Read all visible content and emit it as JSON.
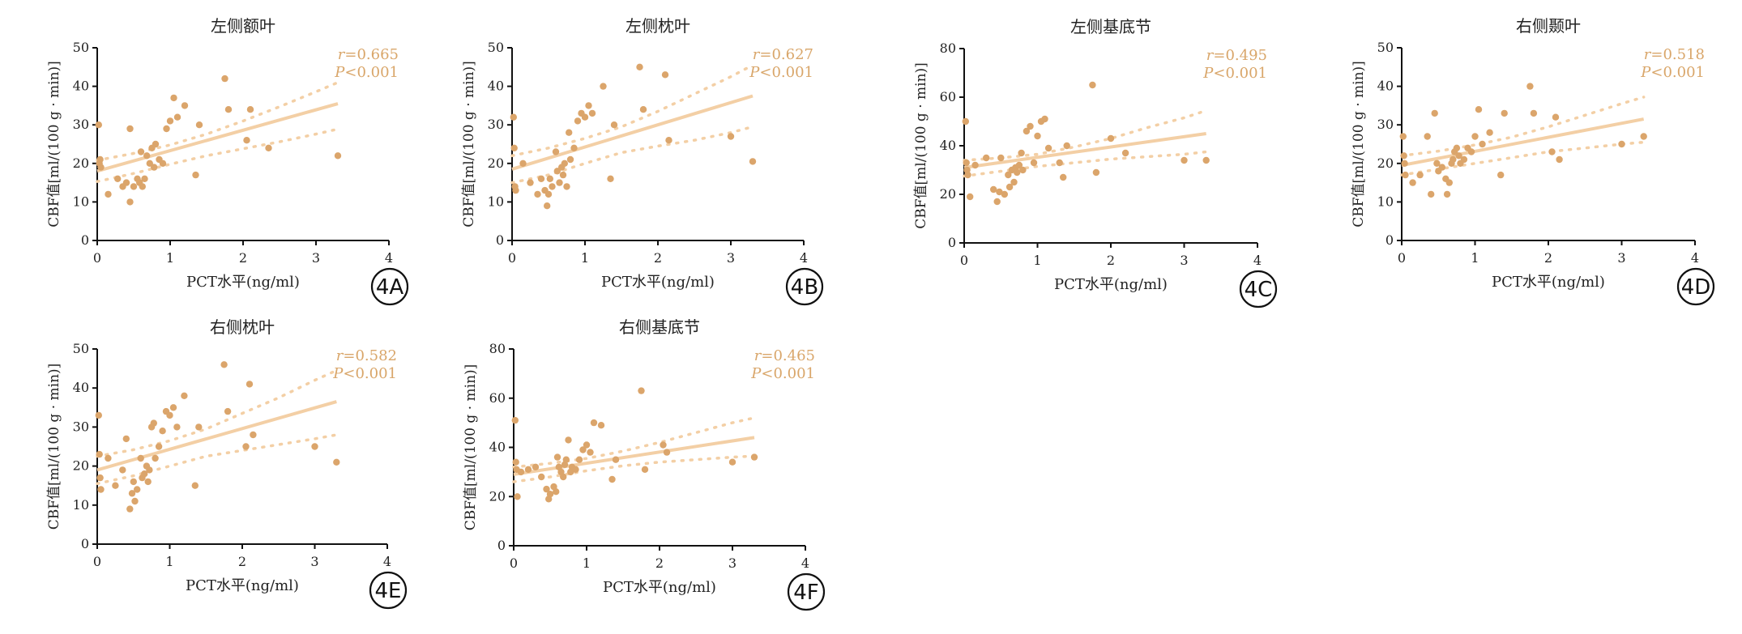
{
  "chart_data": [
    {
      "type": "scatter",
      "panel": "4A",
      "title": "左侧额叶",
      "xlabel": "PCT水平(ng/ml)",
      "ylabel": "CBF值[ml/(100 g · min)]",
      "xlim": [
        0,
        4
      ],
      "ylim": [
        0,
        50
      ],
      "xticks": [
        0,
        1,
        2,
        3,
        4
      ],
      "yticks": [
        0,
        10,
        20,
        30,
        40,
        50
      ],
      "r_label": "r",
      "r_value": "=0.665",
      "p_label": "P",
      "p_value": "<0.001",
      "fit": {
        "x": [
          0,
          3.3
        ],
        "y": [
          18,
          35.5
        ]
      },
      "ci_upper": {
        "x": [
          0,
          0.5,
          1,
          1.5,
          2,
          2.5,
          3,
          3.3
        ],
        "y": [
          20.8,
          22.6,
          24.8,
          27.6,
          31,
          34.7,
          38.6,
          41
        ]
      },
      "ci_lower": {
        "x": [
          0,
          0.5,
          1,
          1.5,
          2,
          2.5,
          3,
          3.3
        ],
        "y": [
          15.3,
          17.4,
          19.8,
          22,
          23.8,
          25.6,
          27.6,
          28.9
        ]
      },
      "points": [
        [
          0.02,
          30
        ],
        [
          0.03,
          20
        ],
        [
          0.04,
          21
        ],
        [
          0.05,
          19
        ],
        [
          0.15,
          12
        ],
        [
          0.28,
          16
        ],
        [
          0.35,
          14
        ],
        [
          0.4,
          15
        ],
        [
          0.45,
          29
        ],
        [
          0.45,
          10
        ],
        [
          0.5,
          14
        ],
        [
          0.55,
          16
        ],
        [
          0.58,
          15
        ],
        [
          0.6,
          23
        ],
        [
          0.62,
          14
        ],
        [
          0.65,
          16
        ],
        [
          0.68,
          22
        ],
        [
          0.72,
          20
        ],
        [
          0.75,
          24
        ],
        [
          0.78,
          19
        ],
        [
          0.8,
          25
        ],
        [
          0.85,
          21
        ],
        [
          0.9,
          20
        ],
        [
          0.95,
          29
        ],
        [
          1.0,
          31
        ],
        [
          1.05,
          37
        ],
        [
          1.1,
          32
        ],
        [
          1.2,
          35
        ],
        [
          1.35,
          17
        ],
        [
          1.4,
          30
        ],
        [
          1.75,
          42
        ],
        [
          1.8,
          34
        ],
        [
          2.05,
          26
        ],
        [
          2.1,
          34
        ],
        [
          2.35,
          24
        ],
        [
          3.3,
          22
        ]
      ]
    },
    {
      "type": "scatter",
      "panel": "4B",
      "title": "左侧枕叶",
      "xlabel": "PCT水平(ng/ml)",
      "ylabel": "CBF值[ml/(100 g · min)]",
      "xlim": [
        0,
        4
      ],
      "ylim": [
        0,
        50
      ],
      "xticks": [
        0,
        1,
        2,
        3,
        4
      ],
      "yticks": [
        0,
        10,
        20,
        30,
        40,
        50
      ],
      "r_label": "r",
      "r_value": "=0.627",
      "p_label": "P",
      "p_value": "<0.001",
      "fit": {
        "x": [
          0,
          3.3
        ],
        "y": [
          18.5,
          37.5
        ]
      },
      "ci_upper": {
        "x": [
          0,
          0.5,
          1,
          1.5,
          2,
          2.5,
          3,
          3.3
        ],
        "y": [
          22,
          24,
          26.5,
          29.5,
          33.5,
          38,
          42.5,
          45.5
        ]
      },
      "ci_lower": {
        "x": [
          0,
          0.5,
          1,
          1.5,
          2,
          2.5,
          3,
          3.3
        ],
        "y": [
          15,
          17,
          20,
          22.8,
          24.5,
          26,
          28,
          29.5
        ]
      },
      "points": [
        [
          0.02,
          32
        ],
        [
          0.03,
          24
        ],
        [
          0.04,
          14
        ],
        [
          0.05,
          13
        ],
        [
          0.15,
          20
        ],
        [
          0.25,
          15
        ],
        [
          0.35,
          12
        ],
        [
          0.4,
          16
        ],
        [
          0.45,
          13
        ],
        [
          0.48,
          9
        ],
        [
          0.5,
          12
        ],
        [
          0.52,
          16
        ],
        [
          0.55,
          14
        ],
        [
          0.6,
          23
        ],
        [
          0.62,
          18
        ],
        [
          0.65,
          15
        ],
        [
          0.68,
          19
        ],
        [
          0.7,
          17
        ],
        [
          0.72,
          20
        ],
        [
          0.75,
          14
        ],
        [
          0.78,
          28
        ],
        [
          0.8,
          21
        ],
        [
          0.85,
          24
        ],
        [
          0.9,
          31
        ],
        [
          0.95,
          33
        ],
        [
          1.0,
          32
        ],
        [
          1.05,
          35
        ],
        [
          1.1,
          33
        ],
        [
          1.25,
          40
        ],
        [
          1.35,
          16
        ],
        [
          1.4,
          30
        ],
        [
          1.75,
          45
        ],
        [
          1.8,
          34
        ],
        [
          2.1,
          43
        ],
        [
          2.15,
          26
        ],
        [
          3.0,
          27
        ],
        [
          3.3,
          20.5
        ]
      ]
    },
    {
      "type": "scatter",
      "panel": "4C",
      "title": "左侧基底节",
      "xlabel": "PCT水平(ng/ml)",
      "ylabel": "CBF值[ml/(100 g · min)]",
      "xlim": [
        0,
        4
      ],
      "ylim": [
        0,
        80
      ],
      "xticks": [
        0,
        1,
        2,
        3,
        4
      ],
      "yticks": [
        0,
        20,
        40,
        60,
        80
      ],
      "r_label": "r",
      "r_value": "=0.495",
      "p_label": "P",
      "p_value": "<0.001",
      "fit": {
        "x": [
          0,
          3.3
        ],
        "y": [
          31,
          45
        ]
      },
      "ci_upper": {
        "x": [
          0,
          0.5,
          1,
          1.5,
          2,
          2.5,
          3,
          3.3
        ],
        "y": [
          34,
          35,
          36.5,
          39.5,
          43,
          47.5,
          51.5,
          54.5
        ]
      },
      "ci_lower": {
        "x": [
          0,
          0.5,
          1,
          1.5,
          2,
          2.5,
          3,
          3.3
        ],
        "y": [
          27.5,
          29.5,
          31.5,
          33,
          34.5,
          35.5,
          36.5,
          37.5
        ]
      },
      "points": [
        [
          0.02,
          50
        ],
        [
          0.03,
          33
        ],
        [
          0.04,
          30
        ],
        [
          0.05,
          28
        ],
        [
          0.08,
          19
        ],
        [
          0.15,
          32
        ],
        [
          0.3,
          35
        ],
        [
          0.4,
          22
        ],
        [
          0.45,
          17
        ],
        [
          0.48,
          21
        ],
        [
          0.5,
          35
        ],
        [
          0.55,
          20
        ],
        [
          0.6,
          28
        ],
        [
          0.62,
          23
        ],
        [
          0.65,
          30
        ],
        [
          0.68,
          25
        ],
        [
          0.7,
          31
        ],
        [
          0.72,
          29
        ],
        [
          0.75,
          32
        ],
        [
          0.78,
          37
        ],
        [
          0.8,
          30
        ],
        [
          0.85,
          46
        ],
        [
          0.9,
          48
        ],
        [
          0.95,
          33
        ],
        [
          1.0,
          44
        ],
        [
          1.05,
          50
        ],
        [
          1.1,
          51
        ],
        [
          1.15,
          39
        ],
        [
          1.3,
          33
        ],
        [
          1.35,
          27
        ],
        [
          1.4,
          40
        ],
        [
          1.75,
          65
        ],
        [
          1.8,
          29
        ],
        [
          2.0,
          43
        ],
        [
          2.2,
          37
        ],
        [
          3.0,
          34
        ],
        [
          3.3,
          34
        ]
      ]
    },
    {
      "type": "scatter",
      "panel": "4D",
      "title": "右侧颞叶",
      "xlabel": "PCT水平(ng/ml)",
      "ylabel": "CBF值[ml/(100 g · min)]",
      "xlim": [
        0,
        4
      ],
      "ylim": [
        0,
        50
      ],
      "xticks": [
        0,
        1,
        2,
        3,
        4
      ],
      "yticks": [
        0,
        10,
        20,
        30,
        40,
        50
      ],
      "r_label": "r",
      "r_value": "=0.518",
      "p_label": "P",
      "p_value": "<0.001",
      "fit": {
        "x": [
          0,
          3.3
        ],
        "y": [
          19.5,
          31.5
        ]
      },
      "ci_upper": {
        "x": [
          0,
          0.5,
          1,
          1.5,
          2,
          2.5,
          3,
          3.3
        ],
        "y": [
          22,
          23.2,
          24.8,
          26.8,
          29.5,
          32.5,
          35.5,
          37.2
        ]
      },
      "ci_lower": {
        "x": [
          0,
          0.5,
          1,
          1.5,
          2,
          2.5,
          3,
          3.3
        ],
        "y": [
          17,
          18.5,
          20,
          21.5,
          23,
          24,
          25,
          25.5
        ]
      },
      "points": [
        [
          0.02,
          27
        ],
        [
          0.03,
          22
        ],
        [
          0.04,
          20
        ],
        [
          0.05,
          17
        ],
        [
          0.15,
          15
        ],
        [
          0.25,
          17
        ],
        [
          0.35,
          27
        ],
        [
          0.4,
          12
        ],
        [
          0.45,
          33
        ],
        [
          0.48,
          20
        ],
        [
          0.5,
          18
        ],
        [
          0.55,
          19
        ],
        [
          0.6,
          16
        ],
        [
          0.62,
          12
        ],
        [
          0.65,
          15
        ],
        [
          0.68,
          20
        ],
        [
          0.7,
          21
        ],
        [
          0.72,
          23
        ],
        [
          0.75,
          24
        ],
        [
          0.78,
          22
        ],
        [
          0.8,
          20
        ],
        [
          0.85,
          21
        ],
        [
          0.9,
          24
        ],
        [
          0.95,
          23
        ],
        [
          1.0,
          27
        ],
        [
          1.05,
          34
        ],
        [
          1.1,
          25
        ],
        [
          1.2,
          28
        ],
        [
          1.35,
          17
        ],
        [
          1.4,
          33
        ],
        [
          1.75,
          40
        ],
        [
          1.8,
          33
        ],
        [
          2.05,
          23
        ],
        [
          2.1,
          32
        ],
        [
          2.15,
          21
        ],
        [
          3.0,
          25
        ],
        [
          3.3,
          27
        ]
      ]
    },
    {
      "type": "scatter",
      "panel": "4E",
      "title": "右侧枕叶",
      "xlabel": "PCT水平(ng/ml)",
      "ylabel": "CBF值[ml/(100 g · min)]",
      "xlim": [
        0,
        4
      ],
      "ylim": [
        0,
        50
      ],
      "xticks": [
        0,
        1,
        2,
        3,
        4
      ],
      "yticks": [
        0,
        10,
        20,
        30,
        40,
        50
      ],
      "r_label": "r",
      "r_value": "=0.582",
      "p_label": "P",
      "p_value": "<0.001",
      "fit": {
        "x": [
          0,
          3.3
        ],
        "y": [
          19,
          36.5
        ]
      },
      "ci_upper": {
        "x": [
          0,
          0.5,
          1,
          1.5,
          2,
          2.5,
          3,
          3.3
        ],
        "y": [
          22.5,
          24.2,
          26.5,
          29.5,
          33.5,
          37.5,
          42,
          44.5
        ]
      },
      "ci_lower": {
        "x": [
          0,
          0.5,
          1,
          1.5,
          2,
          2.5,
          3,
          3.3
        ],
        "y": [
          15.5,
          17.5,
          20,
          22.5,
          24,
          25.5,
          27,
          28
        ]
      },
      "points": [
        [
          0.02,
          33
        ],
        [
          0.03,
          23
        ],
        [
          0.04,
          17
        ],
        [
          0.05,
          14
        ],
        [
          0.15,
          22
        ],
        [
          0.25,
          15
        ],
        [
          0.35,
          19
        ],
        [
          0.4,
          27
        ],
        [
          0.45,
          9
        ],
        [
          0.48,
          13
        ],
        [
          0.5,
          16
        ],
        [
          0.52,
          11
        ],
        [
          0.55,
          14
        ],
        [
          0.6,
          22
        ],
        [
          0.62,
          17
        ],
        [
          0.65,
          18
        ],
        [
          0.68,
          20
        ],
        [
          0.7,
          16
        ],
        [
          0.72,
          19
        ],
        [
          0.75,
          30
        ],
        [
          0.78,
          31
        ],
        [
          0.8,
          22
        ],
        [
          0.85,
          25
        ],
        [
          0.9,
          29
        ],
        [
          0.95,
          34
        ],
        [
          1.0,
          33
        ],
        [
          1.05,
          35
        ],
        [
          1.1,
          30
        ],
        [
          1.2,
          38
        ],
        [
          1.35,
          15
        ],
        [
          1.4,
          30
        ],
        [
          1.75,
          46
        ],
        [
          1.8,
          34
        ],
        [
          2.05,
          25
        ],
        [
          2.1,
          41
        ],
        [
          2.15,
          28
        ],
        [
          3.0,
          25
        ],
        [
          3.3,
          21
        ]
      ]
    },
    {
      "type": "scatter",
      "panel": "4F",
      "title": "右侧基底节",
      "xlabel": "PCT水平(ng/ml)",
      "ylabel": "CBF值[ml/(100 g · min)]",
      "xlim": [
        0,
        4
      ],
      "ylim": [
        0,
        80
      ],
      "xticks": [
        0,
        1,
        2,
        3,
        4
      ],
      "yticks": [
        0,
        20,
        40,
        60,
        80
      ],
      "r_label": "r",
      "r_value": "=0.465",
      "p_label": "P",
      "p_value": "<0.001",
      "fit": {
        "x": [
          0,
          3.3
        ],
        "y": [
          29,
          44
        ]
      },
      "ci_upper": {
        "x": [
          0,
          0.5,
          1,
          1.5,
          2,
          2.5,
          3,
          3.3
        ],
        "y": [
          32,
          33.5,
          35.5,
          38.5,
          42,
          46,
          50,
          52
        ]
      },
      "ci_lower": {
        "x": [
          0,
          0.5,
          1,
          1.5,
          2,
          2.5,
          3,
          3.3
        ],
        "y": [
          26,
          28,
          30.5,
          32.5,
          34,
          35,
          36,
          36.5
        ]
      },
      "points": [
        [
          0.02,
          51
        ],
        [
          0.03,
          34
        ],
        [
          0.04,
          31
        ],
        [
          0.05,
          20
        ],
        [
          0.1,
          30
        ],
        [
          0.2,
          31
        ],
        [
          0.3,
          32
        ],
        [
          0.38,
          28
        ],
        [
          0.45,
          23
        ],
        [
          0.48,
          19
        ],
        [
          0.5,
          21
        ],
        [
          0.55,
          24
        ],
        [
          0.58,
          22
        ],
        [
          0.6,
          36
        ],
        [
          0.62,
          32
        ],
        [
          0.65,
          30
        ],
        [
          0.68,
          28
        ],
        [
          0.7,
          33
        ],
        [
          0.72,
          35
        ],
        [
          0.75,
          43
        ],
        [
          0.78,
          30
        ],
        [
          0.8,
          32
        ],
        [
          0.85,
          31
        ],
        [
          0.9,
          35
        ],
        [
          0.95,
          39
        ],
        [
          1.0,
          41
        ],
        [
          1.05,
          38
        ],
        [
          1.1,
          50
        ],
        [
          1.2,
          49
        ],
        [
          1.35,
          27
        ],
        [
          1.4,
          35
        ],
        [
          1.75,
          63
        ],
        [
          1.8,
          31
        ],
        [
          2.05,
          41
        ],
        [
          2.1,
          38
        ],
        [
          3.0,
          34
        ],
        [
          3.3,
          36
        ]
      ]
    }
  ]
}
